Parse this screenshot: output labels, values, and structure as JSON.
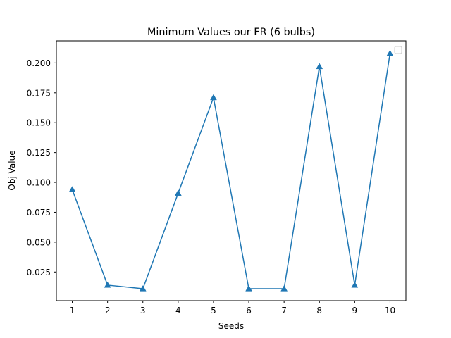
{
  "chart_data": {
    "type": "line",
    "title": "Minimum Values our FR (6 bulbs)",
    "xlabel": "Seeds",
    "ylabel": "Obj Value",
    "x": [
      1,
      2,
      3,
      4,
      5,
      6,
      7,
      8,
      9,
      10
    ],
    "x_tick_labels": [
      "1",
      "2",
      "3",
      "4",
      "5",
      "6",
      "7",
      "8",
      "9",
      "10"
    ],
    "y_ticks": [
      0.025,
      0.05,
      0.075,
      0.1,
      0.125,
      0.15,
      0.175,
      0.2
    ],
    "y_tick_labels": [
      "0.025",
      "0.050",
      "0.075",
      "0.100",
      "0.125",
      "0.150",
      "0.175",
      "0.200"
    ],
    "xlim": [
      0.55,
      10.45
    ],
    "ylim": [
      0.001,
      0.2185
    ],
    "series": [
      {
        "name": "",
        "marker": "triangle-up",
        "color": "#1f77b4",
        "values": [
          0.094,
          0.014,
          0.011,
          0.091,
          0.171,
          0.011,
          0.011,
          0.197,
          0.014,
          0.208
        ]
      }
    ],
    "legend": {
      "position": "top-right",
      "entries": []
    },
    "grid": false
  }
}
